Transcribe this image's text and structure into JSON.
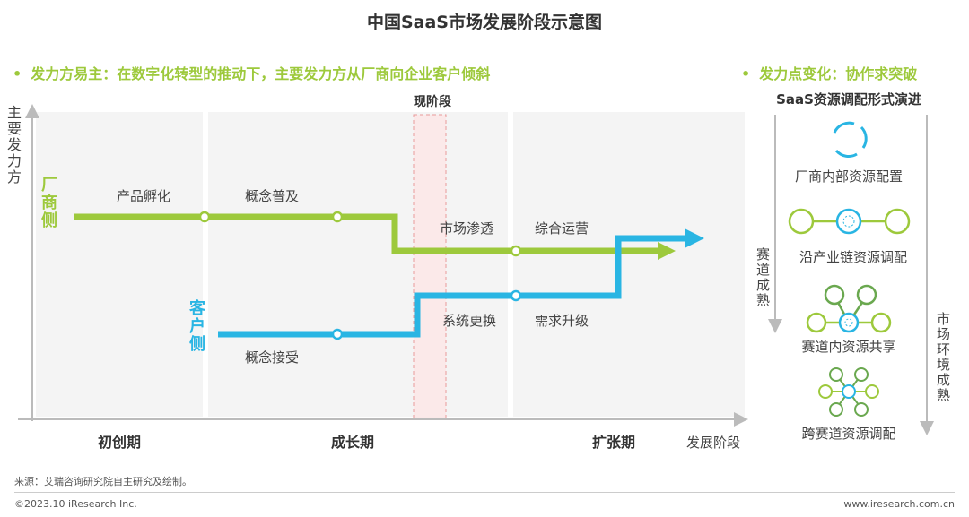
{
  "title": "中国SaaS市场发展阶段示意图",
  "left_headline": "发力方易主：在数字化转型的推动下，主要发力方从厂商向企业客户倾斜",
  "right_headline": "发力点变化：协作求突破",
  "bullet": "•",
  "colors": {
    "vendor": "#9dc93c",
    "customer": "#29b5e3",
    "current_stage": "#e89a9a",
    "title": "#333333"
  },
  "chart": {
    "y_axis_label": "主要发力方",
    "x_axis_label": "发展阶段",
    "current_stage_label": "现阶段",
    "vendor_side_label": "厂商侧",
    "customer_side_label": "客户侧",
    "phases": [
      "初创期",
      "成长期",
      "扩张期"
    ],
    "vendor_steps": [
      "产品孵化",
      "概念普及",
      "市场渗透",
      "综合运营"
    ],
    "customer_steps": [
      "概念接受",
      "系统更换",
      "需求升级"
    ]
  },
  "right_panel": {
    "title": "SaaS资源调配形式演进",
    "left_arrow_label": "赛道成熟",
    "right_arrow_label": "市场环境成熟",
    "forms": [
      {
        "label": "厂商内部资源配置",
        "icon": "cycle-icon"
      },
      {
        "label": "沿产业链资源调配",
        "icon": "chain-icon"
      },
      {
        "label": "赛道内资源共享",
        "icon": "network-icon"
      },
      {
        "label": "跨赛道资源调配",
        "icon": "cluster-icon"
      }
    ]
  },
  "footer": {
    "source": "来源：艾瑞咨询研究院自主研究及绘制。",
    "copyright": "©2023.10 iResearch Inc.",
    "website": "www.iresearch.com.cn"
  }
}
